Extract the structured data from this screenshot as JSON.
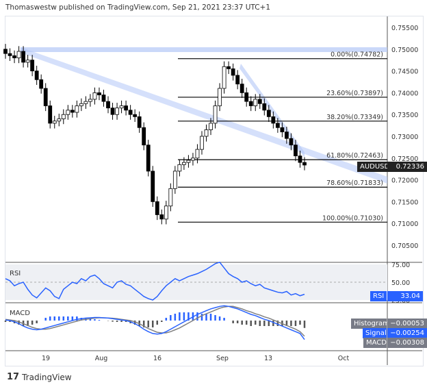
{
  "header": "Thomaswestw published on TradingView.com, Sep 21, 2021 23:37 UTC+1",
  "footer": {
    "logo_text": "TradingView"
  },
  "chart_data": [
    {
      "type": "candlestick",
      "symbol": "AUDUSD",
      "last_price": "0.72336",
      "closes": [
        0.749,
        0.7485,
        0.748,
        0.7495,
        0.747,
        0.7475,
        0.745,
        0.743,
        0.741,
        0.737,
        0.733,
        0.7335,
        0.734,
        0.735,
        0.736,
        0.7355,
        0.737,
        0.7375,
        0.738,
        0.7385,
        0.74,
        0.7395,
        0.738,
        0.7365,
        0.735,
        0.7365,
        0.737,
        0.736,
        0.735,
        0.7345,
        0.732,
        0.728,
        0.722,
        0.715,
        0.712,
        0.711,
        0.714,
        0.718,
        0.722,
        0.7235,
        0.724,
        0.7245,
        0.725,
        0.727,
        0.73,
        0.7315,
        0.733,
        0.737,
        0.741,
        0.746,
        0.7455,
        0.744,
        0.742,
        0.74,
        0.738,
        0.737,
        0.7385,
        0.7375,
        0.736,
        0.7345,
        0.733,
        0.732,
        0.731,
        0.7295,
        0.728,
        0.7255,
        0.724,
        0.7234
      ],
      "y_ticks": [
        "0.75500",
        "0.75000",
        "0.74500",
        "0.74000",
        "0.73500",
        "0.73000",
        "0.72500",
        "0.72000",
        "0.71500",
        "0.71000",
        "0.70500"
      ],
      "y_range": [
        0.7015,
        0.7585
      ],
      "x_ticks": [
        "19",
        "Aug",
        "16",
        "Sep",
        "13",
        "Oct"
      ],
      "fib_levels": [
        {
          "label": "0.00%(0.74782)",
          "price": 0.74782
        },
        {
          "label": "23.60%(0.73897)",
          "price": 0.73897
        },
        {
          "label": "38.20%(0.73349)",
          "price": 0.73349
        },
        {
          "label": "61.80%(0.72463)",
          "price": 0.72463
        },
        {
          "label": "78.60%(0.71833)",
          "price": 0.71833
        },
        {
          "label": "100.00%(0.71030)",
          "price": 0.7103
        }
      ],
      "band_color": "#b3c7f7",
      "up_color": "#ffffff",
      "down_color": "#000000"
    },
    {
      "type": "line",
      "title": "RSI",
      "value": "33.04",
      "y_ticks": [
        "75.00",
        "50.00",
        "25.00"
      ],
      "values": [
        55,
        52,
        45,
        48,
        50,
        40,
        32,
        28,
        35,
        42,
        38,
        30,
        27,
        40,
        45,
        50,
        48,
        55,
        52,
        58,
        60,
        55,
        48,
        45,
        42,
        50,
        52,
        47,
        45,
        40,
        35,
        30,
        27,
        25,
        30,
        38,
        45,
        50,
        55,
        52,
        55,
        58,
        60,
        62,
        65,
        68,
        72,
        76,
        78,
        70,
        62,
        58,
        55,
        50,
        52,
        48,
        45,
        47,
        42,
        40,
        38,
        36,
        35,
        37,
        32,
        34,
        31,
        33.04
      ],
      "color": "#2962ff"
    },
    {
      "type": "line",
      "title": "MACD",
      "series": [
        {
          "name": "Histogram",
          "value": "−0.00053"
        },
        {
          "name": "Signal",
          "value": "−0.00254"
        },
        {
          "name": "MACD",
          "value": "−0.00308"
        }
      ],
      "macd": [
        0.1,
        0.0,
        -0.2,
        -0.5,
        -0.9,
        -1.2,
        -1.4,
        -1.5,
        -1.4,
        -1.2,
        -1.0,
        -0.8,
        -0.6,
        -0.4,
        -0.2,
        0.0,
        0.2,
        0.3,
        0.4,
        0.45,
        0.5,
        0.5,
        0.45,
        0.4,
        0.3,
        0.2,
        0.1,
        0.0,
        -0.2,
        -0.5,
        -0.9,
        -1.4,
        -1.8,
        -2.1,
        -2.2,
        -2.1,
        -1.8,
        -1.4,
        -1.0,
        -0.6,
        -0.2,
        0.2,
        0.6,
        1.0,
        1.3,
        1.6,
        1.9,
        2.1,
        2.3,
        2.4,
        2.3,
        2.1,
        1.9,
        1.6,
        1.3,
        1.0,
        0.8,
        0.5,
        0.2,
        0.0,
        -0.3,
        -0.6,
        -0.9,
        -1.2,
        -1.5,
        -1.8,
        -2.1,
        -3.08
      ],
      "signal": [
        0.2,
        0.1,
        0.0,
        -0.2,
        -0.5,
        -0.8,
        -1.1,
        -1.3,
        -1.4,
        -1.4,
        -1.3,
        -1.1,
        -0.9,
        -0.7,
        -0.5,
        -0.3,
        -0.1,
        0.1,
        0.2,
        0.3,
        0.4,
        0.45,
        0.45,
        0.42,
        0.38,
        0.3,
        0.2,
        0.1,
        0.0,
        -0.2,
        -0.5,
        -0.9,
        -1.3,
        -1.6,
        -1.9,
        -2.0,
        -2.0,
        -1.8,
        -1.5,
        -1.2,
        -0.8,
        -0.4,
        0.0,
        0.4,
        0.8,
        1.1,
        1.4,
        1.7,
        2.0,
        2.2,
        2.3,
        2.3,
        2.1,
        1.9,
        1.6,
        1.4,
        1.1,
        0.9,
        0.6,
        0.4,
        0.1,
        -0.2,
        -0.5,
        -0.8,
        -1.1,
        -1.4,
        -1.8,
        -2.54
      ],
      "macd_color": "#2962ff",
      "signal_color": "#808080"
    }
  ]
}
